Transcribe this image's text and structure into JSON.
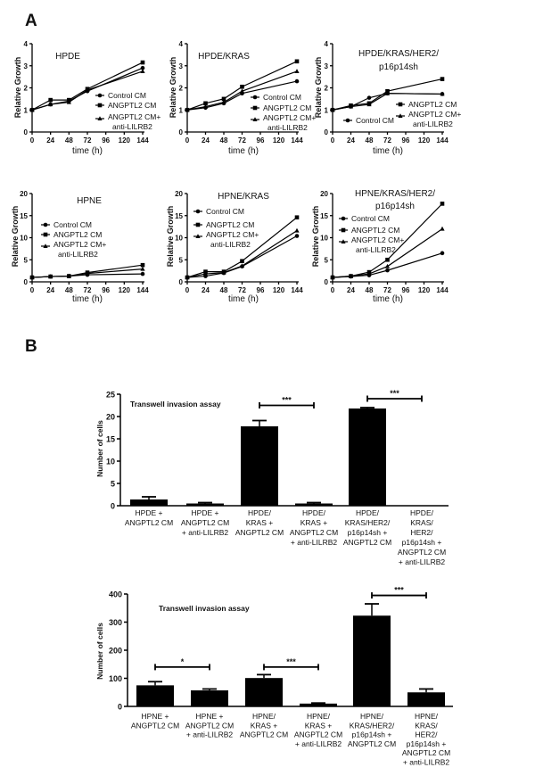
{
  "panel_labels": [
    "A",
    "B"
  ],
  "chart_data": [
    {
      "type": "line",
      "title": "HPDE",
      "xlabel": "time (h)",
      "ylabel": "Relative Growth",
      "x": [
        0,
        24,
        48,
        72,
        144
      ],
      "xticks": [
        "0",
        "24",
        "48",
        "72",
        "96",
        "120",
        "144"
      ],
      "xlim": [
        0,
        144
      ],
      "ylim": [
        0,
        4
      ],
      "yticks": [
        "0",
        "1",
        "2",
        "3",
        "4"
      ],
      "series": [
        {
          "name": "Control CM",
          "marker": "circle",
          "values": [
            1,
            1.25,
            1.4,
            1.85,
            2.9
          ]
        },
        {
          "name": "ANGPTL2 CM",
          "marker": "square",
          "values": [
            1,
            1.45,
            1.45,
            1.95,
            3.15
          ]
        },
        {
          "name": "ANGPTL2 CM+ anti-LILRB2",
          "marker": "triangle",
          "values": [
            1,
            1.25,
            1.35,
            1.9,
            2.75
          ]
        }
      ]
    },
    {
      "type": "line",
      "title": "HPDE/KRAS",
      "xlabel": "time (h)",
      "ylabel": "Relative Growth",
      "x": [
        0,
        24,
        48,
        72,
        144
      ],
      "xticks": [
        "0",
        "24",
        "48",
        "72",
        "96",
        "120",
        "144"
      ],
      "xlim": [
        0,
        144
      ],
      "ylim": [
        0,
        4
      ],
      "yticks": [
        "0",
        "1",
        "2",
        "3",
        "4"
      ],
      "series": [
        {
          "name": "Control CM",
          "marker": "circle",
          "values": [
            1,
            1.1,
            1.3,
            1.75,
            2.3
          ]
        },
        {
          "name": "ANGPTL2 CM",
          "marker": "square",
          "values": [
            1,
            1.3,
            1.5,
            2.05,
            3.2
          ]
        },
        {
          "name": "ANGPTL2 CM+ anti-LILRB2",
          "marker": "triangle",
          "values": [
            1,
            1.15,
            1.35,
            1.85,
            2.75
          ]
        }
      ]
    },
    {
      "type": "line",
      "title": "HPDE/KRAS/HER2/ p16p14sh",
      "xlabel": "time (h)",
      "ylabel": "Relative Growth",
      "x": [
        0,
        24,
        48,
        72,
        144
      ],
      "xticks": [
        "0",
        "24",
        "48",
        "72",
        "96",
        "120",
        "144"
      ],
      "xlim": [
        0,
        144
      ],
      "ylim": [
        0,
        4
      ],
      "yticks": [
        "0",
        "1",
        "2",
        "3",
        "4"
      ],
      "series": [
        {
          "name": "Control CM",
          "marker": "circle",
          "values": [
            1,
            1.15,
            1.55,
            1.75,
            1.72
          ]
        },
        {
          "name": "ANGPTL2 CM",
          "marker": "square",
          "values": [
            1,
            1.2,
            1.3,
            1.85,
            2.4
          ]
        },
        {
          "name": "ANGPTL2 CM+ anti-LILRB2",
          "marker": "triangle",
          "values": [
            1,
            1.15,
            1.25,
            1.75,
            1.72
          ]
        }
      ]
    },
    {
      "type": "line",
      "title": "HPNE",
      "xlabel": "time (h)",
      "ylabel": "Relative Growth",
      "x": [
        0,
        24,
        48,
        72,
        144
      ],
      "xticks": [
        "0",
        "24",
        "48",
        "72",
        "96",
        "120",
        "144"
      ],
      "xlim": [
        0,
        144
      ],
      "ylim": [
        0,
        20
      ],
      "yticks": [
        "0",
        "5",
        "10",
        "15",
        "20"
      ],
      "series": [
        {
          "name": "Control CM",
          "marker": "circle",
          "values": [
            1,
            1.2,
            1.3,
            1.6,
            1.8
          ]
        },
        {
          "name": "ANGPTL2 CM",
          "marker": "square",
          "values": [
            1,
            1.2,
            1.3,
            2.1,
            3.8
          ]
        },
        {
          "name": "ANGPTL2 CM+ anti-LILRB2",
          "marker": "triangle",
          "values": [
            1,
            1.2,
            1.3,
            1.9,
            2.9
          ]
        }
      ]
    },
    {
      "type": "line",
      "title": "HPNE/KRAS",
      "xlabel": "time (h)",
      "ylabel": "Relative Growth",
      "x": [
        0,
        24,
        48,
        72,
        144
      ],
      "xticks": [
        "0",
        "24",
        "48",
        "72",
        "96",
        "120",
        "144"
      ],
      "xlim": [
        0,
        144
      ],
      "ylim": [
        0,
        20
      ],
      "yticks": [
        "0",
        "5",
        "10",
        "15",
        "20"
      ],
      "series": [
        {
          "name": "Control CM",
          "marker": "circle",
          "values": [
            1,
            1.3,
            2.0,
            3.5,
            10.4
          ]
        },
        {
          "name": "ANGPTL2 CM",
          "marker": "square",
          "values": [
            1,
            2.3,
            2.3,
            4.7,
            14.6
          ]
        },
        {
          "name": "ANGPTL2 CM+ anti-LILRB2",
          "marker": "triangle",
          "values": [
            1,
            1.8,
            2.1,
            3.6,
            11.6
          ]
        }
      ]
    },
    {
      "type": "line",
      "title": "HPNE/KRAS/HER2/ p16p14sh",
      "xlabel": "time (h)",
      "ylabel": "Relative Growth",
      "x": [
        0,
        24,
        48,
        72,
        144
      ],
      "xticks": [
        "0",
        "24",
        "48",
        "72",
        "96",
        "120",
        "144"
      ],
      "xlim": [
        0,
        144
      ],
      "ylim": [
        0,
        20
      ],
      "yticks": [
        "0",
        "5",
        "10",
        "15",
        "20"
      ],
      "series": [
        {
          "name": "Control CM",
          "marker": "circle",
          "values": [
            1,
            1.2,
            1.5,
            2.6,
            6.5
          ]
        },
        {
          "name": "ANGPTL2 CM",
          "marker": "square",
          "values": [
            1,
            1.3,
            2.2,
            5.0,
            17.7
          ]
        },
        {
          "name": "ANGPTL2 CM+ anti-LILRB2",
          "marker": "triangle",
          "values": [
            1,
            1.3,
            1.8,
            3.5,
            12.0
          ]
        }
      ]
    },
    {
      "type": "bar",
      "title": "Transwell invasion assay",
      "ylabel": "Number of cells",
      "ylim": [
        0,
        25
      ],
      "yticks": [
        "0",
        "5",
        "10",
        "15",
        "20",
        "25"
      ],
      "categories": [
        "HPDE +\nANGPTL2 CM",
        "HPDE +\nANGPTL2 CM\n+ anti-LILRB2",
        "HPDE/\nKRAS +\nANGPTL2 CM",
        "HPDE/\nKRAS +\nANGPTL2 CM\n+ anti-LILRB2",
        "HPDE/\nKRAS/HER2/\np16p14sh +\nANGPTL2  CM",
        "HPDE/\nKRAS/\nHER2/\np16p14sh +\nANGPTL2 CM\n+ anti-LILRB2"
      ],
      "values": [
        1.4,
        0.5,
        17.8,
        0.5,
        21.8,
        0
      ],
      "errors": [
        0.6,
        0.2,
        1.3,
        0.2,
        0.2,
        0
      ],
      "significance": [
        {
          "from": 2,
          "to": 3,
          "label": "***",
          "y": 22.5
        },
        {
          "from": 4,
          "to": 5,
          "label": "***",
          "y": 24
        }
      ]
    },
    {
      "type": "bar",
      "title": "Transwell invasion assay",
      "ylabel": "Number of cells",
      "ylim": [
        0,
        400
      ],
      "yticks": [
        "0",
        "100",
        "200",
        "300",
        "400"
      ],
      "categories": [
        "HPNE +\nANGPTL2 CM",
        "HPNE +\nANGPTL2 CM\n+ anti-LILRB2",
        "HPNE/\nKRAS +\nANGPTL2 CM",
        "HPNE/\nKRAS +\nANGPTL2 CM\n+ anti-LILRB2",
        "HPNE/\nKRAS/HER2/\np16p14sh +\nANGPTL2  CM",
        "HPNE/\nKRAS/\nHER2/\np16p14sh +\nANGPTL2 CM\n+ anti-LILRB2"
      ],
      "values": [
        75,
        57,
        101,
        10,
        323,
        50
      ],
      "errors": [
        13,
        5,
        12,
        2,
        42,
        12
      ],
      "significance": [
        {
          "from": 0,
          "to": 1,
          "label": "*",
          "y": 140
        },
        {
          "from": 2,
          "to": 3,
          "label": "***",
          "y": 140
        },
        {
          "from": 4,
          "to": 5,
          "label": "***",
          "y": 395
        }
      ]
    }
  ]
}
